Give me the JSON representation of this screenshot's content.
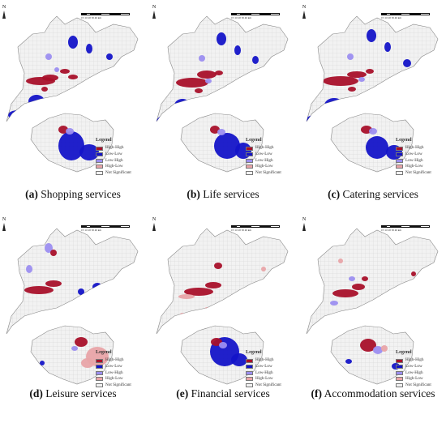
{
  "legend": {
    "title": "Legend",
    "items": [
      {
        "label": "High-High",
        "color": "#a8102a"
      },
      {
        "label": "Low-Low",
        "color": "#1414c8"
      },
      {
        "label": "Low-High",
        "color": "#9c8ef0"
      },
      {
        "label": "High-Low",
        "color": "#e8a4a8"
      },
      {
        "label": "Not Significant",
        "color": "#f2f2f2"
      }
    ]
  },
  "north_label": "N",
  "scale_ticks": "0  5  10  20  30  40",
  "scale_unit": "km",
  "panels": [
    {
      "letter": "(a)",
      "title": "Shopping services"
    },
    {
      "letter": "(b)",
      "title": "Life services"
    },
    {
      "letter": "(c)",
      "title": "Catering services"
    },
    {
      "letter": "(d)",
      "title": "Leisure services"
    },
    {
      "letter": "(e)",
      "title": "Financial services"
    },
    {
      "letter": "(f)",
      "title": "Accommodation services"
    }
  ]
}
